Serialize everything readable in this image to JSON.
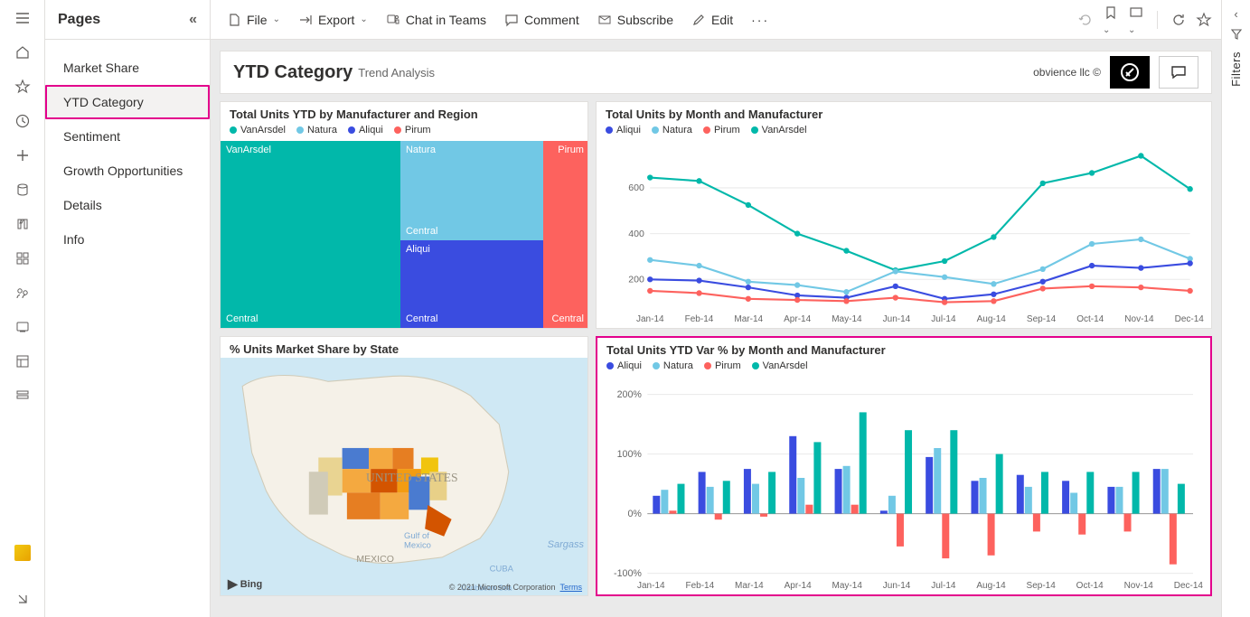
{
  "nav_rail": {
    "icons": [
      "menu",
      "home",
      "favorite",
      "recent",
      "create",
      "data-hub",
      "goals",
      "apps",
      "shared",
      "learn",
      "workspaces",
      "deployment"
    ]
  },
  "pages": {
    "header": "Pages",
    "items": [
      "Market Share",
      "YTD Category",
      "Sentiment",
      "Growth Opportunities",
      "Details",
      "Info"
    ],
    "selected_index": 1
  },
  "toolbar": {
    "file": "File",
    "export": "Export",
    "chat": "Chat in Teams",
    "comment": "Comment",
    "subscribe": "Subscribe",
    "edit": "Edit"
  },
  "report": {
    "title": "YTD Category",
    "subtitle": "Trend Analysis",
    "attribution": "obvience llc ©"
  },
  "treemap": {
    "title": "Total Units YTD by Manufacturer and Region",
    "legend": [
      {
        "label": "VanArsdel",
        "color": "#01b8aa"
      },
      {
        "label": "Natura",
        "color": "#71c8e5"
      },
      {
        "label": "Aliqui",
        "color": "#3a4ce0"
      },
      {
        "label": "Pirum",
        "color": "#fd625e"
      }
    ],
    "labels": {
      "vanarsdel": "VanArsdel",
      "natura": "Natura",
      "aliqui": "Aliqui",
      "pirum": "Pirum",
      "central": "Central"
    }
  },
  "line_chart": {
    "title": "Total Units by Month and Manufacturer",
    "legend": [
      {
        "label": "Aliqui",
        "color": "#3a4ce0"
      },
      {
        "label": "Natura",
        "color": "#71c8e5"
      },
      {
        "label": "Pirum",
        "color": "#fd625e"
      },
      {
        "label": "VanArsdel",
        "color": "#01b8aa"
      }
    ],
    "x_labels": [
      "Jan-14",
      "Feb-14",
      "Mar-14",
      "Apr-14",
      "May-14",
      "Jun-14",
      "Jul-14",
      "Aug-14",
      "Sep-14",
      "Oct-14",
      "Nov-14",
      "Dec-14"
    ],
    "y_ticks": [
      200,
      400,
      600
    ],
    "ylim": [
      80,
      780
    ],
    "series": {
      "VanArsdel": [
        645,
        630,
        525,
        400,
        325,
        240,
        280,
        385,
        620,
        665,
        740,
        595
      ],
      "Natura": [
        285,
        260,
        190,
        175,
        145,
        235,
        210,
        180,
        245,
        355,
        375,
        290
      ],
      "Aliqui": [
        200,
        195,
        165,
        130,
        120,
        170,
        115,
        135,
        190,
        260,
        250,
        270
      ],
      "Pirum": [
        150,
        140,
        115,
        110,
        105,
        120,
        100,
        105,
        160,
        170,
        165,
        150
      ]
    },
    "grid_color": "#eaeaea"
  },
  "map": {
    "title": "% Units Market Share by State",
    "attribution_left": "Bing",
    "attribution_right": "© 2021 Microsoft Corporation",
    "terms": "Terms",
    "saragasso": "Sargass"
  },
  "bar_chart": {
    "title": "Total Units YTD Var % by Month and Manufacturer",
    "legend": [
      {
        "label": "Aliqui",
        "color": "#3a4ce0"
      },
      {
        "label": "Natura",
        "color": "#71c8e5"
      },
      {
        "label": "Pirum",
        "color": "#fd625e"
      },
      {
        "label": "VanArsdel",
        "color": "#01b8aa"
      }
    ],
    "x_labels": [
      "Jan-14",
      "Feb-14",
      "Mar-14",
      "Apr-14",
      "May-14",
      "Jun-14",
      "Jul-14",
      "Aug-14",
      "Sep-14",
      "Oct-14",
      "Nov-14",
      "Dec-14"
    ],
    "y_ticks": [
      "200%",
      "100%",
      "0%",
      "-100%"
    ],
    "ylim": [
      -100,
      220
    ],
    "series": {
      "Aliqui": [
        30,
        70,
        75,
        130,
        75,
        5,
        95,
        55,
        65,
        55,
        45,
        75
      ],
      "Natura": [
        40,
        45,
        50,
        60,
        80,
        30,
        110,
        60,
        45,
        35,
        45,
        75
      ],
      "Pirum": [
        5,
        -10,
        -5,
        15,
        15,
        -55,
        -75,
        -70,
        -30,
        -35,
        -30,
        -85
      ],
      "VanArsdel": [
        50,
        55,
        70,
        120,
        170,
        140,
        140,
        100,
        70,
        70,
        70,
        50
      ]
    }
  },
  "filters": {
    "label": "Filters"
  }
}
